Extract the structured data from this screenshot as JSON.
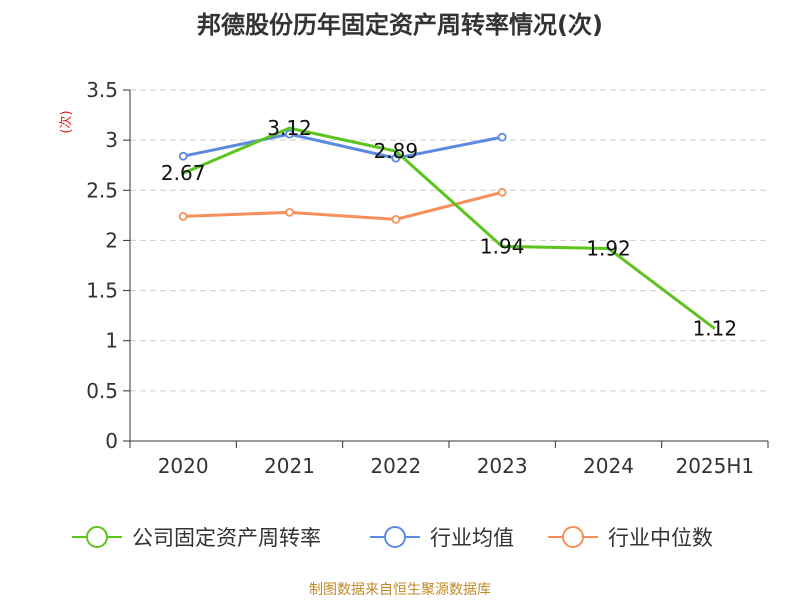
{
  "chart_data": {
    "type": "line",
    "title": "邦德股份历年固定资产周转率情况(次)",
    "ylabel": "(次)",
    "categories": [
      "2020",
      "2021",
      "2022",
      "2023",
      "2024",
      "2025H1"
    ],
    "ylim": [
      0,
      3.5
    ],
    "yticks": [
      "0",
      "0.5",
      "1",
      "1.5",
      "2",
      "2.5",
      "3",
      "3.5"
    ],
    "grid": true,
    "legend_position": "bottom",
    "series": [
      {
        "name": "公司固定资产周转率",
        "color": "#5cc41f",
        "values": [
          2.67,
          3.12,
          2.89,
          1.94,
          1.92,
          1.12
        ],
        "labels": [
          "2.67",
          "3.12",
          "2.89",
          "1.94",
          "1.92",
          "1.12"
        ]
      },
      {
        "name": "行业均值",
        "color": "#5b8ae0",
        "values": [
          2.84,
          3.06,
          2.82,
          3.03,
          null,
          null
        ]
      },
      {
        "name": "行业中位数",
        "color": "#f5905a",
        "values": [
          2.24,
          2.28,
          2.21,
          2.48,
          null,
          null
        ]
      }
    ]
  },
  "source": "制图数据来自恒生聚源数据库",
  "colors": {
    "source_text": "#c08a2a",
    "ylabel_text": "#e02020"
  }
}
